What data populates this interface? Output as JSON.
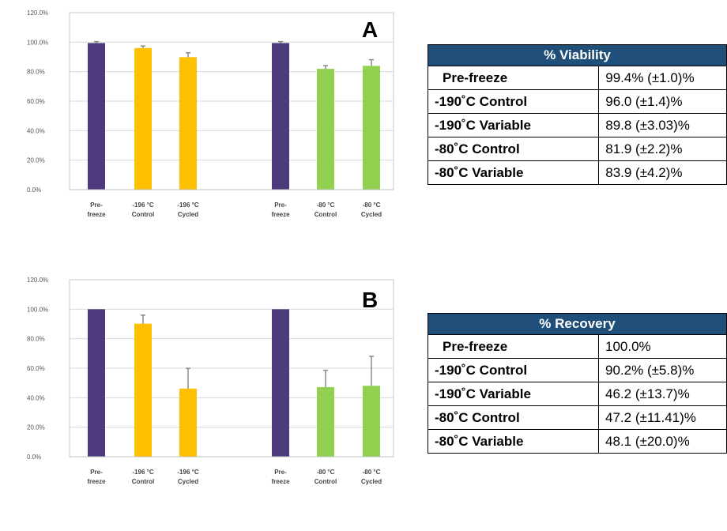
{
  "colors": {
    "prefreeze": "#4d3a7c",
    "cryo190": "#ffc000",
    "freezer80": "#92d050",
    "header": "#1f4e79",
    "errorbar": "#8a8a8a"
  },
  "chart_data": [
    {
      "type": "bar",
      "panel": "A",
      "ylim": [
        0,
        120
      ],
      "yticks": [
        "0.0%",
        "20.0%",
        "40.0%",
        "60.0%",
        "80.0%",
        "100.0%",
        "120.0%"
      ],
      "categories": [
        {
          "line1": "Pre-",
          "line2": "freeze"
        },
        {
          "line1": "-196 °C",
          "line2": "Control"
        },
        {
          "line1": "-196 °C",
          "line2": "Cycled"
        },
        {
          "line1": "Pre-",
          "line2": "freeze"
        },
        {
          "line1": "-80 °C",
          "line2": "Control"
        },
        {
          "line1": "-80 °C",
          "line2": "Cycled"
        }
      ],
      "values": [
        99.4,
        96.0,
        89.8,
        99.4,
        81.9,
        83.9
      ],
      "errors": [
        1.0,
        1.4,
        3.03,
        1.0,
        2.2,
        4.2
      ],
      "groups": [
        "prefreeze",
        "cryo190",
        "cryo190",
        "prefreeze",
        "freezer80",
        "freezer80"
      ],
      "grid": true
    },
    {
      "type": "bar",
      "panel": "B",
      "ylim": [
        0,
        120
      ],
      "yticks": [
        "0.0%",
        "20.0%",
        "40.0%",
        "60.0%",
        "80.0%",
        "100.0%",
        "120.0%"
      ],
      "categories": [
        {
          "line1": "Pre-",
          "line2": "freeze"
        },
        {
          "line1": "-196 °C",
          "line2": "Control"
        },
        {
          "line1": "-196 °C",
          "line2": "Cycled"
        },
        {
          "line1": "Pre-",
          "line2": "freeze"
        },
        {
          "line1": "-80 °C",
          "line2": "Control"
        },
        {
          "line1": "-80 °C",
          "line2": "Cycled"
        }
      ],
      "values": [
        100.0,
        90.2,
        46.2,
        100.0,
        47.2,
        48.1
      ],
      "errors": [
        0,
        5.8,
        13.7,
        0,
        11.41,
        20.0
      ],
      "groups": [
        "prefreeze",
        "cryo190",
        "cryo190",
        "prefreeze",
        "freezer80",
        "freezer80"
      ],
      "grid": true
    }
  ],
  "panelA": {
    "letter": "A"
  },
  "panelB": {
    "letter": "B"
  },
  "viability": {
    "header": "% Viability",
    "rows": [
      {
        "label": "Pre-freeze",
        "value": "99.4% (±1.0)%"
      },
      {
        "label": "-190˚C Control",
        "value": "96.0 (±1.4)%"
      },
      {
        "label": "-190˚C Variable",
        "value": "89.8 (±3.03)%"
      },
      {
        "label": "-80˚C Control",
        "value": "81.9 (±2.2)%"
      },
      {
        "label": "-80˚C Variable",
        "value": "83.9 (±4.2)%"
      }
    ]
  },
  "recovery": {
    "header": "% Recovery",
    "rows": [
      {
        "label": "Pre-freeze",
        "value": "100.0%"
      },
      {
        "label": "-190˚C Control",
        "value": "90.2% (±5.8)%"
      },
      {
        "label": "-190˚C Variable",
        "value": "46.2 (±13.7)%"
      },
      {
        "label": "-80˚C Control",
        "value": "47.2 (±11.41)%"
      },
      {
        "label": "-80˚C Variable",
        "value": "48.1 (±20.0)%"
      }
    ]
  }
}
